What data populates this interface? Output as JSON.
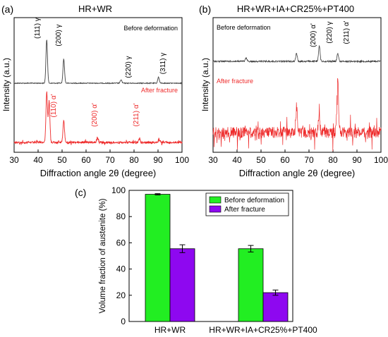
{
  "colors": {
    "before": "#404040",
    "after": "#ee2a2a",
    "bar_before": "#22ee22",
    "bar_after": "#8e08f0",
    "axis": "#000000"
  },
  "chart_data": [
    {
      "type": "line",
      "panel_label": "(a)",
      "title": "HR+WR",
      "xlabel": "Diffraction angle 2θ (degree)",
      "ylabel": "Intensity (a.u.)",
      "xlim": [
        30,
        100
      ],
      "xticks": [
        30,
        40,
        50,
        60,
        70,
        80,
        90,
        100
      ],
      "series": [
        {
          "name": "Before deformation",
          "peaks": [
            [
              43.6,
              1.0
            ],
            [
              50.7,
              0.55
            ],
            [
              74.6,
              0.08
            ],
            [
              90.2,
              0.14
            ]
          ]
        },
        {
          "name": "After fracture",
          "peaks": [
            [
              43.6,
              0.95
            ],
            [
              44.6,
              0.75
            ],
            [
              50.7,
              0.42
            ],
            [
              64.9,
              0.08
            ],
            [
              82.2,
              0.06
            ],
            [
              90.5,
              0.07
            ]
          ]
        }
      ],
      "annotations": [
        {
          "text": "(111) γ",
          "x": 43.6,
          "series": "Before deformation"
        },
        {
          "text": "(200) γ",
          "x": 50.7,
          "series": "Before deformation"
        },
        {
          "text": "(220) γ",
          "x": 74.6,
          "series": "Before deformation"
        },
        {
          "text": "(311) γ",
          "x": 90.2,
          "series": "Before deformation"
        },
        {
          "text": "(110) α'",
          "x": 44.8,
          "series": "After fracture"
        },
        {
          "text": "(200) α'",
          "x": 65.0,
          "series": "After fracture"
        },
        {
          "text": "(211) α'",
          "x": 82.2,
          "series": "After fracture"
        }
      ]
    },
    {
      "type": "line",
      "panel_label": "(b)",
      "title": "HR+WR+IA+CR25%+PT400",
      "xlabel": "Diffraction angle 2θ (degree)",
      "ylabel": "Intensity (a.u.)",
      "xlim": [
        30,
        100
      ],
      "xticks": [
        30,
        40,
        50,
        60,
        70,
        80,
        90,
        100
      ],
      "series": [
        {
          "name": "Before deformation",
          "peaks": [
            [
              43.8,
              0.12
            ],
            [
              64.8,
              0.28
            ],
            [
              74.3,
              0.55
            ],
            [
              82.0,
              0.28
            ]
          ]
        },
        {
          "name": "After fracture",
          "peaks": [
            [
              43.8,
              0.1
            ],
            [
              64.8,
              0.42
            ],
            [
              74.3,
              0.3
            ],
            [
              82.0,
              0.9
            ]
          ]
        }
      ],
      "annotations": [
        {
          "text": "(200) α'",
          "x": 64.8,
          "series": "Before deformation"
        },
        {
          "text": "(220) γ",
          "x": 74.3,
          "series": "Before deformation"
        },
        {
          "text": "(211) α'",
          "x": 82.0,
          "series": "Before deformation"
        }
      ]
    },
    {
      "type": "bar",
      "panel_label": "(c)",
      "categories": [
        "HR+WR",
        "HR+WR+IA+CR25%+PT400"
      ],
      "series": [
        {
          "name": "Before deformation",
          "values": [
            97.0,
            55.5
          ],
          "errors": [
            0.5,
            2.5
          ]
        },
        {
          "name": "After fracture",
          "values": [
            55.5,
            22.0
          ],
          "errors": [
            3.0,
            2.0
          ]
        }
      ],
      "ylabel": "Volume fraction of austenite (%)",
      "ylim": [
        0,
        100
      ],
      "yticks": [
        0,
        20,
        40,
        60,
        80,
        100
      ],
      "legend": "top-right"
    }
  ]
}
